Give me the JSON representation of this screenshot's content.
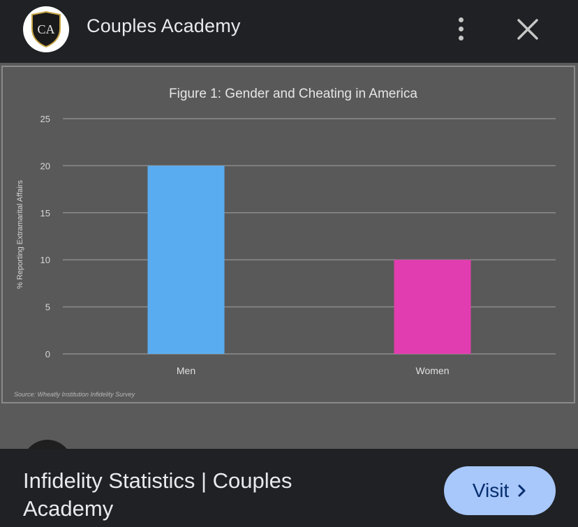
{
  "header": {
    "site_name": "Couples Academy",
    "logo_initials": "CA",
    "more_icon": "more-vert-icon",
    "close_icon": "close-icon"
  },
  "image": {
    "lens_icon": "google-lens-icon"
  },
  "chart_data": {
    "type": "bar",
    "title": "Figure 1: Gender and Cheating in America",
    "ylabel": "% Reporting Extramarital Affairs",
    "xlabel": "",
    "categories": [
      "Men",
      "Women"
    ],
    "values": [
      20,
      10
    ],
    "colors": [
      "#5aacf0",
      "#e23db0"
    ],
    "ylim": [
      0,
      25
    ],
    "yticks": [
      0,
      5,
      10,
      15,
      20,
      25
    ],
    "grid": true,
    "source_note": "Source: Wheatly Institution Infidelity Survey"
  },
  "footer": {
    "page_title": "Infidelity Statistics | Couples Academy",
    "visit_label": "Visit",
    "visit_icon": "chevron-right-icon"
  },
  "colors": {
    "background": "#202124",
    "chart_bg": "#595959",
    "accent": "#a8c7fa"
  }
}
